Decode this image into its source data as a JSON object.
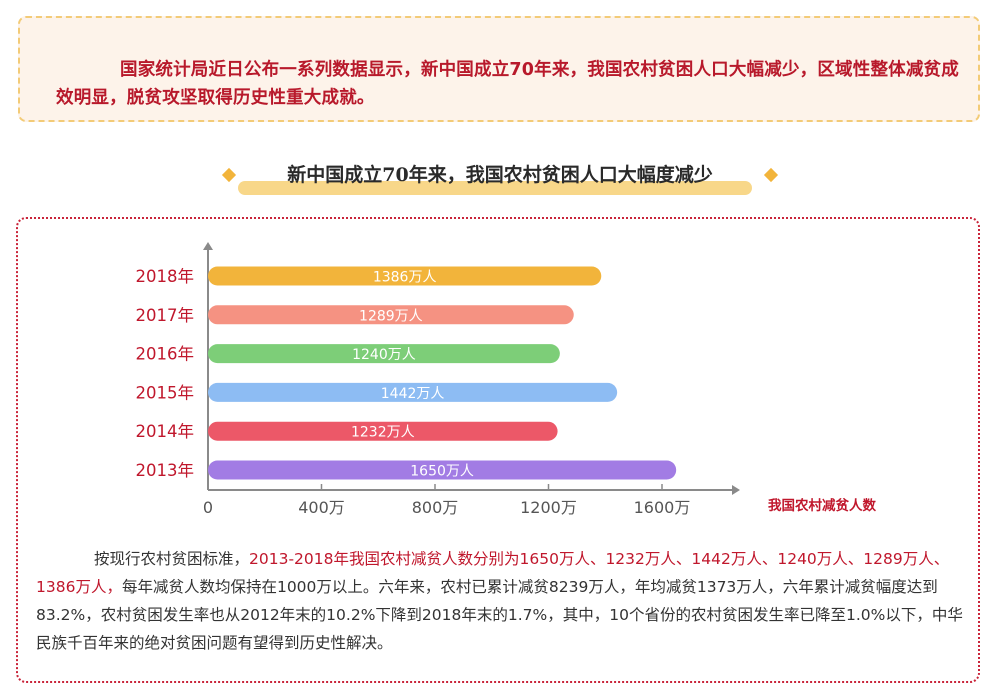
{
  "intro": {
    "text": "国家统计局近日公布一系列数据显示，新中国成立70年来，我国农村贫困人口大幅减少，区域性整体减贫成效明显，脱贫攻坚取得历史性重大成就。"
  },
  "chart_title": "新中国成立70年来，我国农村贫困人口大幅度减少",
  "chart_data": {
    "type": "bar",
    "orientation": "horizontal",
    "categories": [
      "2018年",
      "2017年",
      "2016年",
      "2015年",
      "2014年",
      "2013年"
    ],
    "values": [
      1386,
      1289,
      1240,
      1442,
      1232,
      1650
    ],
    "value_labels": [
      "1386万人",
      "1289万人",
      "1240万人",
      "1442万人",
      "1232万人",
      "1650万人"
    ],
    "bar_colors": [
      "#f2b43b",
      "#f59282",
      "#7dce78",
      "#8dbcf3",
      "#ec5868",
      "#a27ce4"
    ],
    "x_ticks": [
      0,
      400,
      800,
      1200,
      1600
    ],
    "x_tick_labels": [
      "0",
      "400万",
      "800万",
      "1200万",
      "1600万"
    ],
    "xlabel": "我国农村减贫人数",
    "xlim": [
      0,
      1680
    ],
    "grid": false
  },
  "summary": {
    "lead": "按现行农村贫困标准，",
    "highlight": "2013-2018年我国农村减贫人数分别为1650万人、1232万人、1442万人、1240万人、1289万人、1386万人，",
    "rest": "每年减贫人数均保持在1000万以上。六年来，农村已累计减贫8239万人，年均减贫1373万人，六年累计减贫幅度达到83.2%，农村贫困发生率也从2012年末的10.2%下降到2018年末的1.7%，其中，10个省份的农村贫困发生率已降至1.0%以下，中华民族千百年来的绝对贫困问题有望得到历史性解决。"
  },
  "colors": {
    "accent_red": "#c0172c",
    "intro_border": "#f3cb77",
    "intro_bg": "#fdf3ea",
    "title_highlight": "#f8d789",
    "axis": "#8a8a8a"
  }
}
